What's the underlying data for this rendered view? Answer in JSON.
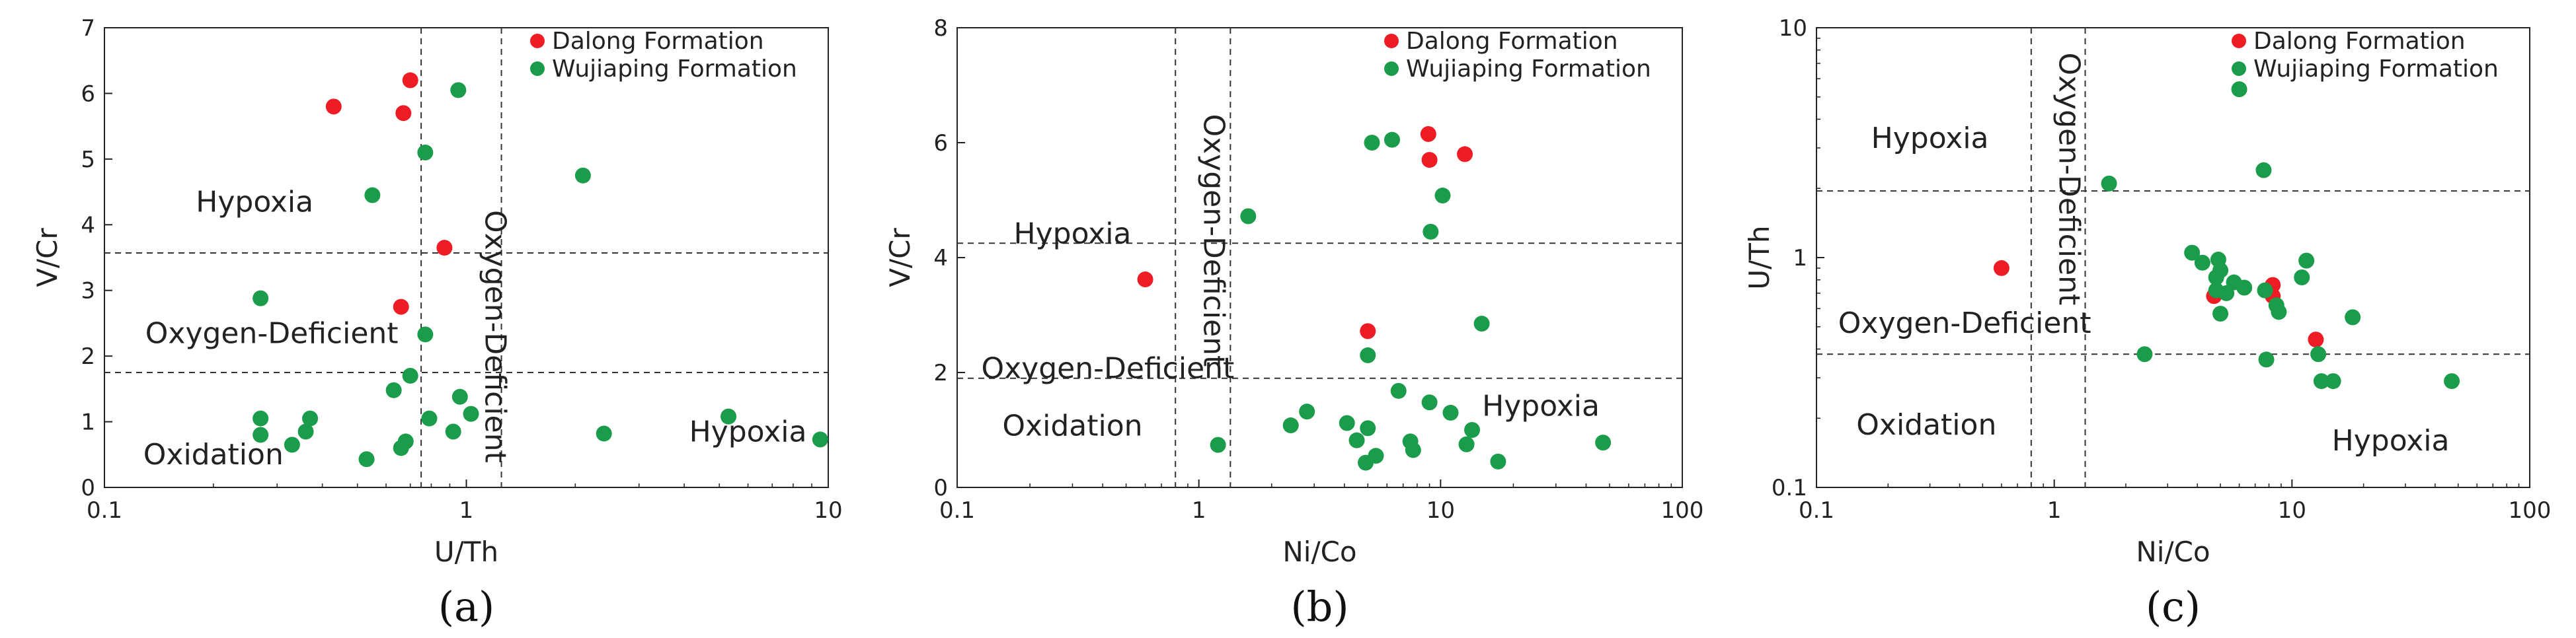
{
  "colors": {
    "dalong": "#ee1c25",
    "wujiaping": "#1a9c4a"
  },
  "legend": {
    "dalong": "Dalong Formation",
    "wujiaping": "Wujiaping Formation"
  },
  "chart_data": [
    {
      "type": "scatter",
      "panel": "(a)",
      "xlabel": "U/Th",
      "ylabel": "V/Cr",
      "xscale": "log",
      "yscale": "linear",
      "xlim": [
        0.1,
        10
      ],
      "ylim": [
        0,
        7
      ],
      "xticks": [
        0.1,
        1,
        10
      ],
      "xtick_labels": [
        "0.1",
        "1",
        "10"
      ],
      "yticks": [
        0,
        1,
        2,
        3,
        4,
        5,
        6,
        7
      ],
      "ytick_labels": [
        "0",
        "1",
        "2",
        "3",
        "4",
        "5",
        "6",
        "7"
      ],
      "thresholds": {
        "x": [
          0.75,
          1.25
        ],
        "y": [
          1.75,
          3.57
        ]
      },
      "regions": [
        {
          "text": "Hypoxia",
          "x": 0.26,
          "y": 4.2,
          "rotate": false
        },
        {
          "text": "Oxygen-Deficient",
          "x": 0.29,
          "y": 2.2,
          "rotate": false
        },
        {
          "text": "Oxidation",
          "x": 0.2,
          "y": 0.35,
          "rotate": false
        },
        {
          "text": "Hypoxia",
          "x": 6.0,
          "y": 0.7,
          "rotate": false
        },
        {
          "text": "Oxygen-Deficient",
          "x": 1.13,
          "y": 2.3,
          "rotate": true
        }
      ],
      "series": [
        {
          "name": "Dalong Formation",
          "points": [
            [
              0.43,
              5.8
            ],
            [
              0.67,
              5.7
            ],
            [
              0.7,
              6.2
            ],
            [
              0.87,
              3.65
            ],
            [
              0.66,
              2.75
            ]
          ]
        },
        {
          "name": "Wujiaping Formation",
          "points": [
            [
              0.95,
              6.05
            ],
            [
              0.77,
              5.1
            ],
            [
              2.1,
              4.75
            ],
            [
              0.55,
              4.45
            ],
            [
              0.27,
              2.88
            ],
            [
              0.77,
              2.33
            ],
            [
              0.7,
              1.7
            ],
            [
              0.63,
              1.48
            ],
            [
              0.96,
              1.38
            ],
            [
              1.03,
              1.12
            ],
            [
              0.79,
              1.05
            ],
            [
              0.27,
              1.05
            ],
            [
              0.37,
              1.05
            ],
            [
              0.27,
              0.8
            ],
            [
              0.36,
              0.85
            ],
            [
              0.33,
              0.65
            ],
            [
              0.68,
              0.7
            ],
            [
              0.92,
              0.85
            ],
            [
              0.66,
              0.6
            ],
            [
              0.53,
              0.43
            ],
            [
              5.3,
              1.08
            ],
            [
              2.4,
              0.82
            ],
            [
              9.5,
              0.73
            ]
          ]
        }
      ]
    },
    {
      "type": "scatter",
      "panel": "(b)",
      "xlabel": "Ni/Co",
      "ylabel": "V/Cr",
      "xscale": "log",
      "yscale": "linear",
      "xlim": [
        0.1,
        100
      ],
      "ylim": [
        0,
        8
      ],
      "xticks": [
        0.1,
        1,
        10,
        100
      ],
      "xtick_labels": [
        "0.1",
        "1",
        "10",
        "100"
      ],
      "yticks": [
        0,
        2,
        4,
        6,
        8
      ],
      "ytick_labels": [
        "0",
        "2",
        "4",
        "6",
        "8"
      ],
      "thresholds": {
        "x": [
          0.8,
          1.35
        ],
        "y": [
          1.9,
          4.25
        ]
      },
      "regions": [
        {
          "text": "Hypoxia",
          "x": 0.3,
          "y": 4.25,
          "rotate": false
        },
        {
          "text": "Oxygen-Deficient",
          "x": 0.42,
          "y": 1.9,
          "rotate": false
        },
        {
          "text": "Oxidation",
          "x": 0.3,
          "y": 0.9,
          "rotate": false
        },
        {
          "text": "Hypoxia",
          "x": 26,
          "y": 1.25,
          "rotate": false
        },
        {
          "text": "Oxygen-Deficient",
          "x": 1.05,
          "y": 4.3,
          "rotate": true
        }
      ],
      "series": [
        {
          "name": "Dalong Formation",
          "points": [
            [
              8.9,
              6.15
            ],
            [
              9.0,
              5.7
            ],
            [
              12.6,
              5.8
            ],
            [
              0.6,
              3.62
            ],
            [
              5.0,
              2.72
            ]
          ]
        },
        {
          "name": "Wujiaping Formation",
          "points": [
            [
              5.2,
              6.0
            ],
            [
              6.3,
              6.05
            ],
            [
              1.6,
              4.72
            ],
            [
              10.2,
              5.08
            ],
            [
              9.1,
              4.45
            ],
            [
              14.8,
              2.85
            ],
            [
              5.0,
              2.3
            ],
            [
              6.7,
              1.68
            ],
            [
              9.0,
              1.48
            ],
            [
              11.0,
              1.3
            ],
            [
              2.8,
              1.32
            ],
            [
              4.1,
              1.12
            ],
            [
              2.4,
              1.08
            ],
            [
              5.0,
              1.03
            ],
            [
              13.5,
              1.0
            ],
            [
              4.5,
              0.82
            ],
            [
              7.5,
              0.8
            ],
            [
              12.8,
              0.75
            ],
            [
              7.7,
              0.65
            ],
            [
              5.4,
              0.55
            ],
            [
              4.9,
              0.43
            ],
            [
              17.3,
              0.45
            ],
            [
              47,
              0.78
            ],
            [
              1.2,
              0.74
            ]
          ]
        }
      ]
    },
    {
      "type": "scatter",
      "panel": "(c)",
      "xlabel": "Ni/Co",
      "ylabel": "U/Th",
      "xscale": "log",
      "yscale": "log",
      "xlim": [
        0.1,
        100
      ],
      "ylim": [
        0.1,
        10
      ],
      "xticks": [
        0.1,
        1,
        10,
        100
      ],
      "xtick_labels": [
        "0.1",
        "1",
        "10",
        "100"
      ],
      "yticks": [
        0.1,
        1,
        10
      ],
      "ytick_labels": [
        "0.1",
        "1",
        "10"
      ],
      "thresholds": {
        "x": [
          0.8,
          1.35
        ],
        "y": [
          0.38,
          1.95
        ]
      },
      "regions": [
        {
          "text": "Hypoxia",
          "x": 0.3,
          "y": 3.0,
          "rotate": false
        },
        {
          "text": "Oxygen-Deficient",
          "x": 0.42,
          "y": 0.47,
          "rotate": false
        },
        {
          "text": "Oxidation",
          "x": 0.29,
          "y": 0.17,
          "rotate": false
        },
        {
          "text": "Hypoxia",
          "x": 26,
          "y": 0.145,
          "rotate": false
        },
        {
          "text": "Oxygen-Deficient",
          "x": 1.05,
          "y": 2.2,
          "rotate": true
        }
      ],
      "series": [
        {
          "name": "Dalong Formation",
          "points": [
            [
              0.6,
              0.9
            ],
            [
              4.7,
              0.68
            ],
            [
              8.3,
              0.76
            ],
            [
              8.3,
              0.68
            ],
            [
              12.6,
              0.44
            ]
          ]
        },
        {
          "name": "Wujiaping Formation",
          "points": [
            [
              6.0,
              5.4
            ],
            [
              7.6,
              2.4
            ],
            [
              1.7,
              2.1
            ],
            [
              3.8,
              1.05
            ],
            [
              4.2,
              0.95
            ],
            [
              4.9,
              0.98
            ],
            [
              5.0,
              0.88
            ],
            [
              4.8,
              0.82
            ],
            [
              5.7,
              0.78
            ],
            [
              6.3,
              0.74
            ],
            [
              7.7,
              0.72
            ],
            [
              5.3,
              0.7
            ],
            [
              4.8,
              0.72
            ],
            [
              11.5,
              0.97
            ],
            [
              11.0,
              0.82
            ],
            [
              8.6,
              0.62
            ],
            [
              8.8,
              0.58
            ],
            [
              5.0,
              0.57
            ],
            [
              18,
              0.55
            ],
            [
              2.4,
              0.38
            ],
            [
              7.8,
              0.36
            ],
            [
              12.9,
              0.38
            ],
            [
              13.3,
              0.29
            ],
            [
              14.9,
              0.29
            ],
            [
              47,
              0.29
            ]
          ]
        }
      ]
    }
  ]
}
